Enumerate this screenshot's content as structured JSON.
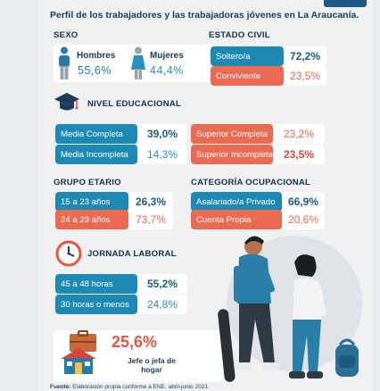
{
  "header": {
    "title": "Perfil de los trabajadores y las trabajadoras jóvenes en La Araucanía."
  },
  "sexo": {
    "title": "SEXO",
    "hombres_label": "Hombres",
    "hombres_value": "55,6%",
    "mujeres_label": "Mujeres",
    "mujeres_value": "44,4%"
  },
  "estado_civil": {
    "title": "ESTADO CIVIL",
    "items": [
      {
        "label": "Soltero/a",
        "value": "72,2%"
      },
      {
        "label": "Conviviente",
        "value": "23,5%"
      }
    ]
  },
  "nivel_educacional": {
    "title": "NIVEL EDUCACIONAL",
    "items": [
      {
        "label": "Media Completa",
        "value": "39,0%"
      },
      {
        "label": "Media Incompleta",
        "value": "14,3%"
      },
      {
        "label": "Superior Completa",
        "value": "23,2%"
      },
      {
        "label": "Superior Incompleta",
        "value": "23,5%"
      }
    ]
  },
  "grupo_etario": {
    "title": "GRUPO ETARIO",
    "items": [
      {
        "label": "15 a 23 años",
        "value": "26,3%"
      },
      {
        "label": "24 a 29 años",
        "value": "73,7%"
      }
    ]
  },
  "categoria_ocupacional": {
    "title": "CATEGORÍA OCUPACIONAL",
    "items": [
      {
        "label": "Asalariado/a Privado",
        "value": "66,9%"
      },
      {
        "label": "Cuenta Propia",
        "value": "20,6%"
      }
    ]
  },
  "jornada_laboral": {
    "title": "JORNADA LABORAL",
    "items": [
      {
        "label": "45 a 48 horas",
        "value": "55,2%"
      },
      {
        "label": "30 horas o menos",
        "value": "24,8%"
      }
    ]
  },
  "jefe_hogar": {
    "value": "25,6%",
    "label": "Jefe o jefa de hogar"
  },
  "footer": {
    "source_label": "Fuente:",
    "source_text": "Elaboración propia conforme a ENE, abril-junio 2021."
  },
  "colors": {
    "blue": "#1d8ab6",
    "orange": "#eb6a52",
    "navy": "#1e3b57"
  }
}
